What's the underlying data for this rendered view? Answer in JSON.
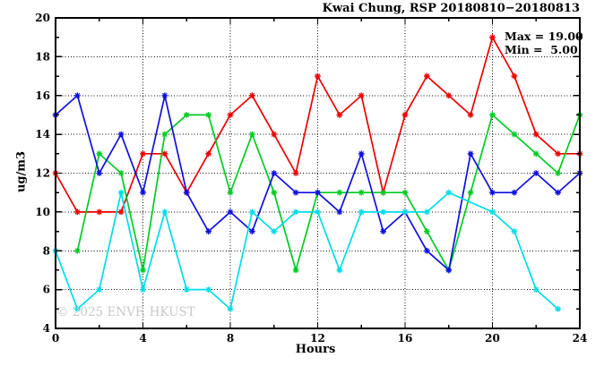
{
  "title": "Kwai Chung, RSP 20180810−20180813",
  "legend": {
    "max_label": "Max = 19.00",
    "min_label": "Min =  5.00"
  },
  "watermark": "© 2025 ENVF, HKUST",
  "chart_data": {
    "type": "line",
    "title": "Kwai Chung, RSP 20180810−20180813",
    "xlabel": "Hours",
    "ylabel": "ug/m3",
    "xlim": [
      0,
      24
    ],
    "ylim": [
      4,
      20
    ],
    "grid": true,
    "legend_position": "top-right-inside",
    "stats": {
      "max": 19.0,
      "min": 5.0
    },
    "x_major_ticks": [
      0,
      4,
      8,
      12,
      16,
      20,
      24
    ],
    "x_minor_ticks": [
      2,
      6,
      10,
      14,
      18,
      22
    ],
    "y_major_ticks": [
      4,
      6,
      8,
      10,
      12,
      14,
      16,
      18,
      20
    ],
    "y_minor_ticks": [
      5,
      7,
      9,
      11,
      13,
      15,
      17,
      19
    ],
    "x_gridlines": [
      4,
      8,
      12,
      16,
      20
    ],
    "y_gridlines": [
      6,
      8,
      10,
      12,
      14,
      16,
      18
    ],
    "x": [
      0,
      1,
      2,
      3,
      4,
      5,
      6,
      7,
      8,
      9,
      10,
      11,
      12,
      13,
      14,
      15,
      16,
      17,
      18,
      19,
      20,
      21,
      22,
      23,
      24
    ],
    "series": [
      {
        "name": "red",
        "color": "#ee0000",
        "values": [
          12,
          10,
          10,
          10,
          13,
          13,
          11,
          13,
          15,
          16,
          14,
          12,
          17,
          15,
          16,
          11,
          15,
          17,
          16,
          15,
          19,
          17,
          14,
          13,
          13
        ]
      },
      {
        "name": "green",
        "color": "#00cc22",
        "values": [
          null,
          8,
          13,
          12,
          7,
          14,
          15,
          15,
          11,
          14,
          11,
          7,
          11,
          11,
          11,
          11,
          11,
          9,
          7,
          11,
          15,
          14,
          13,
          12,
          15
        ]
      },
      {
        "name": "blue",
        "color": "#0f0fe0",
        "values": [
          15,
          16,
          12,
          14,
          11,
          16,
          11,
          9,
          10,
          9,
          12,
          11,
          11,
          10,
          13,
          9,
          10,
          8,
          7,
          13,
          11,
          11,
          12,
          11,
          12
        ]
      },
      {
        "name": "cyan",
        "color": "#00dde8",
        "values": [
          8,
          5,
          6,
          11,
          6,
          10,
          6,
          6,
          5,
          10,
          9,
          10,
          10,
          7,
          10,
          10,
          10,
          10,
          11,
          null,
          10,
          9,
          6,
          5,
          null
        ]
      }
    ]
  }
}
